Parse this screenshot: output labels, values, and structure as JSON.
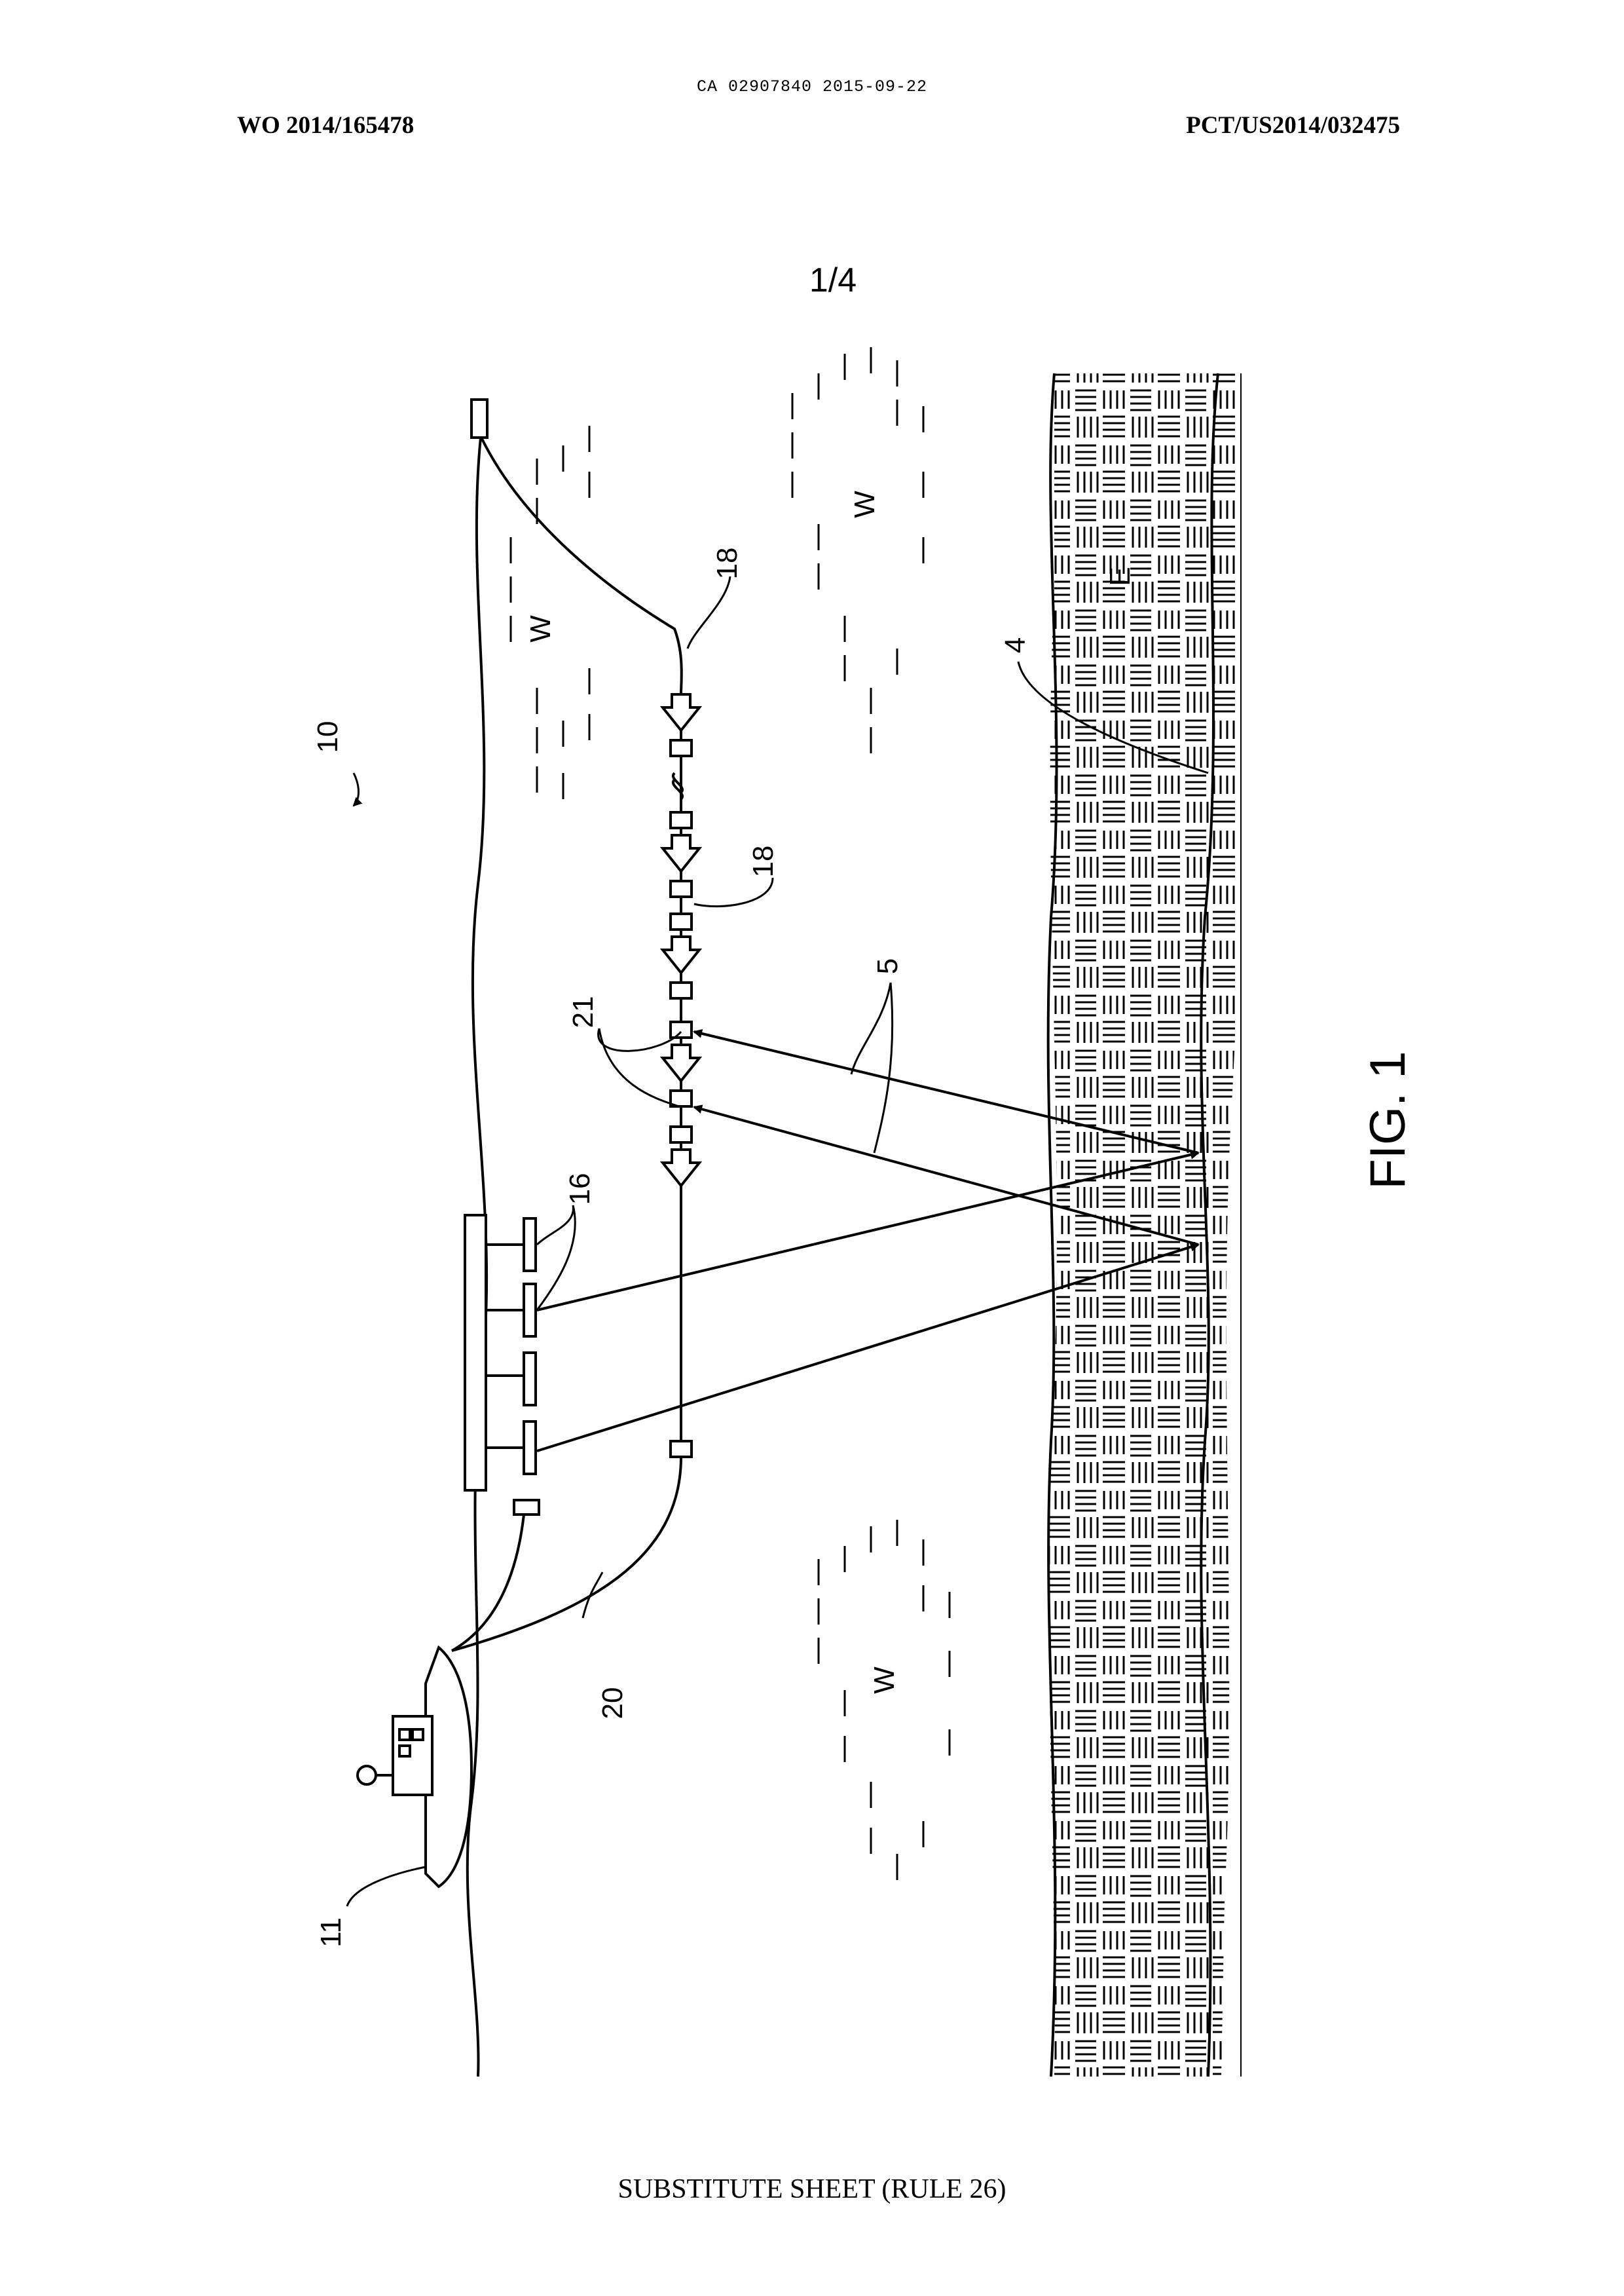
{
  "header": {
    "ca_line": "CA 02907840 2015-09-22",
    "publication_number": "WO 2014/165478",
    "application_number": "PCT/US2014/032475"
  },
  "figure": {
    "sheet": "1/4",
    "title": "FIG. 1",
    "labels": {
      "system": "10",
      "vessel": "11",
      "sources": "16",
      "streamer_upper": "18",
      "streamer_middle": "18",
      "cable": "20",
      "receivers": "21",
      "reflector": "4",
      "rays": "5",
      "earth": "E",
      "water_1": "W",
      "water_2": "W",
      "water_3": "W"
    }
  },
  "footer": {
    "text": "SUBSTITUTE SHEET (RULE 26)"
  }
}
